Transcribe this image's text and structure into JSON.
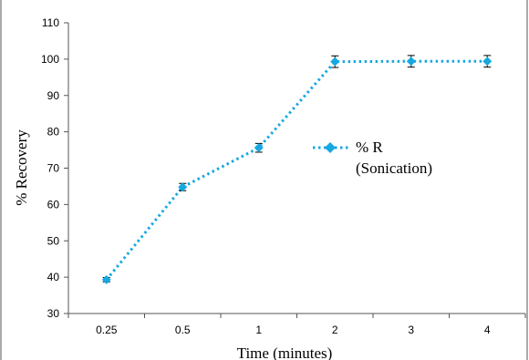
{
  "chart_data": {
    "type": "line",
    "title": "",
    "xlabel": "Time (minutes)",
    "ylabel": "% Recovery",
    "categories": [
      "0.25",
      "0.5",
      "1",
      "2",
      "3",
      "4"
    ],
    "ylim": [
      30,
      110
    ],
    "yticks": [
      30,
      40,
      50,
      60,
      70,
      80,
      90,
      100,
      110
    ],
    "grid": false,
    "legend_position": "right",
    "series": [
      {
        "name": "% R (Sonication)",
        "values": [
          39.3,
          64.8,
          75.6,
          99.3,
          99.4,
          99.4
        ],
        "error": [
          0.6,
          1.0,
          1.2,
          1.6,
          1.6,
          1.6
        ],
        "color": "#17a8e0",
        "line_style": "dotted",
        "marker": "diamond"
      }
    ]
  },
  "legend": {
    "line1": "% R",
    "line2": "(Sonication)"
  }
}
